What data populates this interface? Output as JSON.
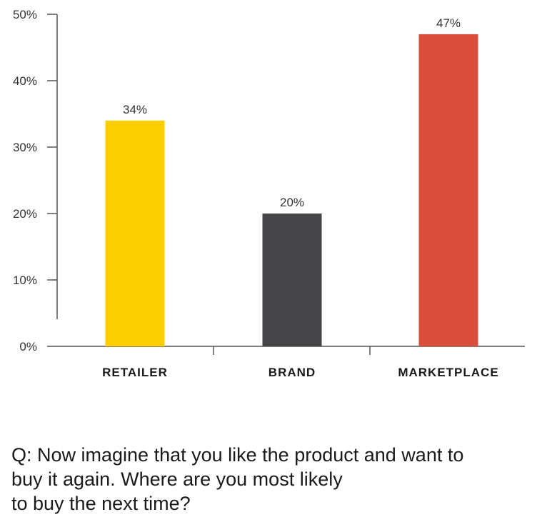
{
  "chart_data": {
    "type": "bar",
    "categories": [
      "RETAILER",
      "BRAND",
      "MARKETPLACE"
    ],
    "values": [
      34,
      20,
      47
    ],
    "value_labels": [
      "34%",
      "20%",
      "47%"
    ],
    "colors": [
      "#FCD000",
      "#454547",
      "#D94E3B"
    ],
    "ylim": [
      0,
      50
    ],
    "yticks": [
      0,
      10,
      20,
      30,
      40,
      50
    ],
    "ytick_labels": [
      "0%",
      "10%",
      "20%",
      "30%",
      "40%",
      "50%"
    ],
    "grid": false,
    "legend": "none"
  },
  "question": {
    "lines": [
      "Q: Now imagine that you like the product and want to",
      "buy it again. Where are you most likely",
      "to buy the next time?"
    ]
  }
}
